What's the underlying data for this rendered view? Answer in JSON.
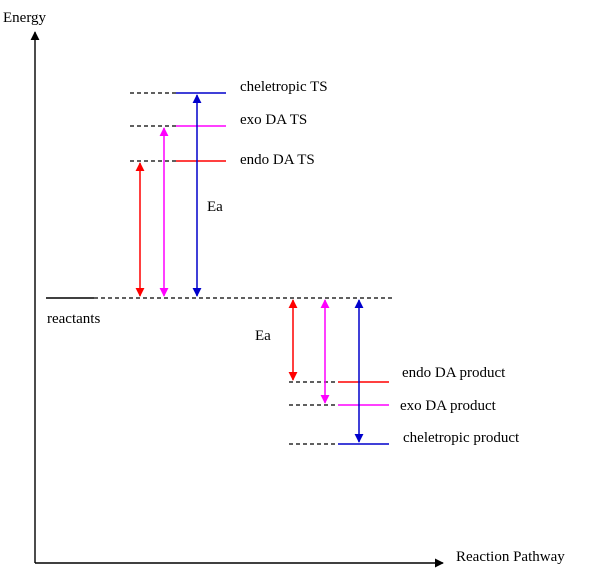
{
  "axes": {
    "y_label": "Energy",
    "x_label": "Reaction Pathway"
  },
  "levels": {
    "reactants": "reactants",
    "cheletropic_ts": "cheletropic TS",
    "exo_ts": "exo DA TS",
    "endo_ts": "endo DA TS",
    "endo_product": "endo DA product",
    "exo_product": "exo DA product",
    "cheletropic_product": "cheletropic product"
  },
  "annotations": {
    "ea_forward": "Ea",
    "ea_products": "Ea"
  },
  "colors": {
    "axis": "#000000",
    "cheletropic": "#0000cc",
    "exo": "#ff00ff",
    "endo": "#ff0000",
    "reference": "#000000"
  }
}
